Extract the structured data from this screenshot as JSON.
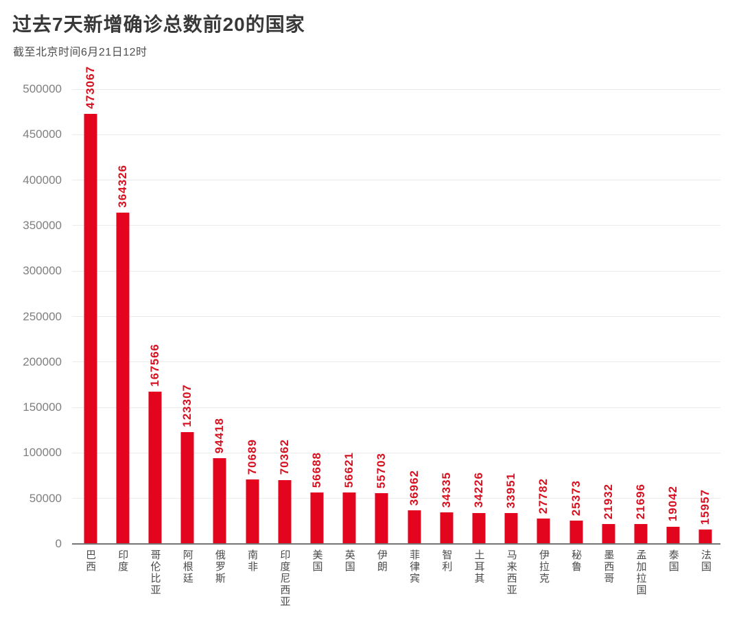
{
  "header": {
    "title": "过去7天新增确诊总数前20的国家",
    "subtitle": "截至北京时间6月21日12时"
  },
  "chart_data": {
    "type": "bar",
    "title": "过去7天新增确诊总数前20的国家",
    "subtitle": "截至北京时间6月21日12时",
    "categories": [
      "巴西",
      "印度",
      "哥伦比亚",
      "阿根廷",
      "俄罗斯",
      "南非",
      "印度尼西亚",
      "美国",
      "英国",
      "伊朗",
      "菲律宾",
      "智利",
      "土耳其",
      "马来西亚",
      "伊拉克",
      "秘鲁",
      "墨西哥",
      "孟加拉国",
      "泰国",
      "法国"
    ],
    "values": [
      473067,
      364326,
      167566,
      123307,
      94418,
      70689,
      70362,
      56688,
      56621,
      55703,
      36962,
      34335,
      34226,
      33951,
      27782,
      25373,
      21932,
      21696,
      19042,
      15957
    ],
    "xlabel": "",
    "ylabel": "",
    "ylim": [
      0,
      500000
    ],
    "ytick_step": 50000,
    "y_tick_labels": [
      "0",
      "50000",
      "100000",
      "150000",
      "200000",
      "250000",
      "300000",
      "350000",
      "400000",
      "450000",
      "500000"
    ],
    "legend": null,
    "grid": "horizontal",
    "bar_color": "#e3041e",
    "value_label_color": "#d6101f",
    "gridline_color": "#ebebeb",
    "axis_line_color": "#757575",
    "value_labels_rotated": true,
    "category_labels_vertical": true
  }
}
